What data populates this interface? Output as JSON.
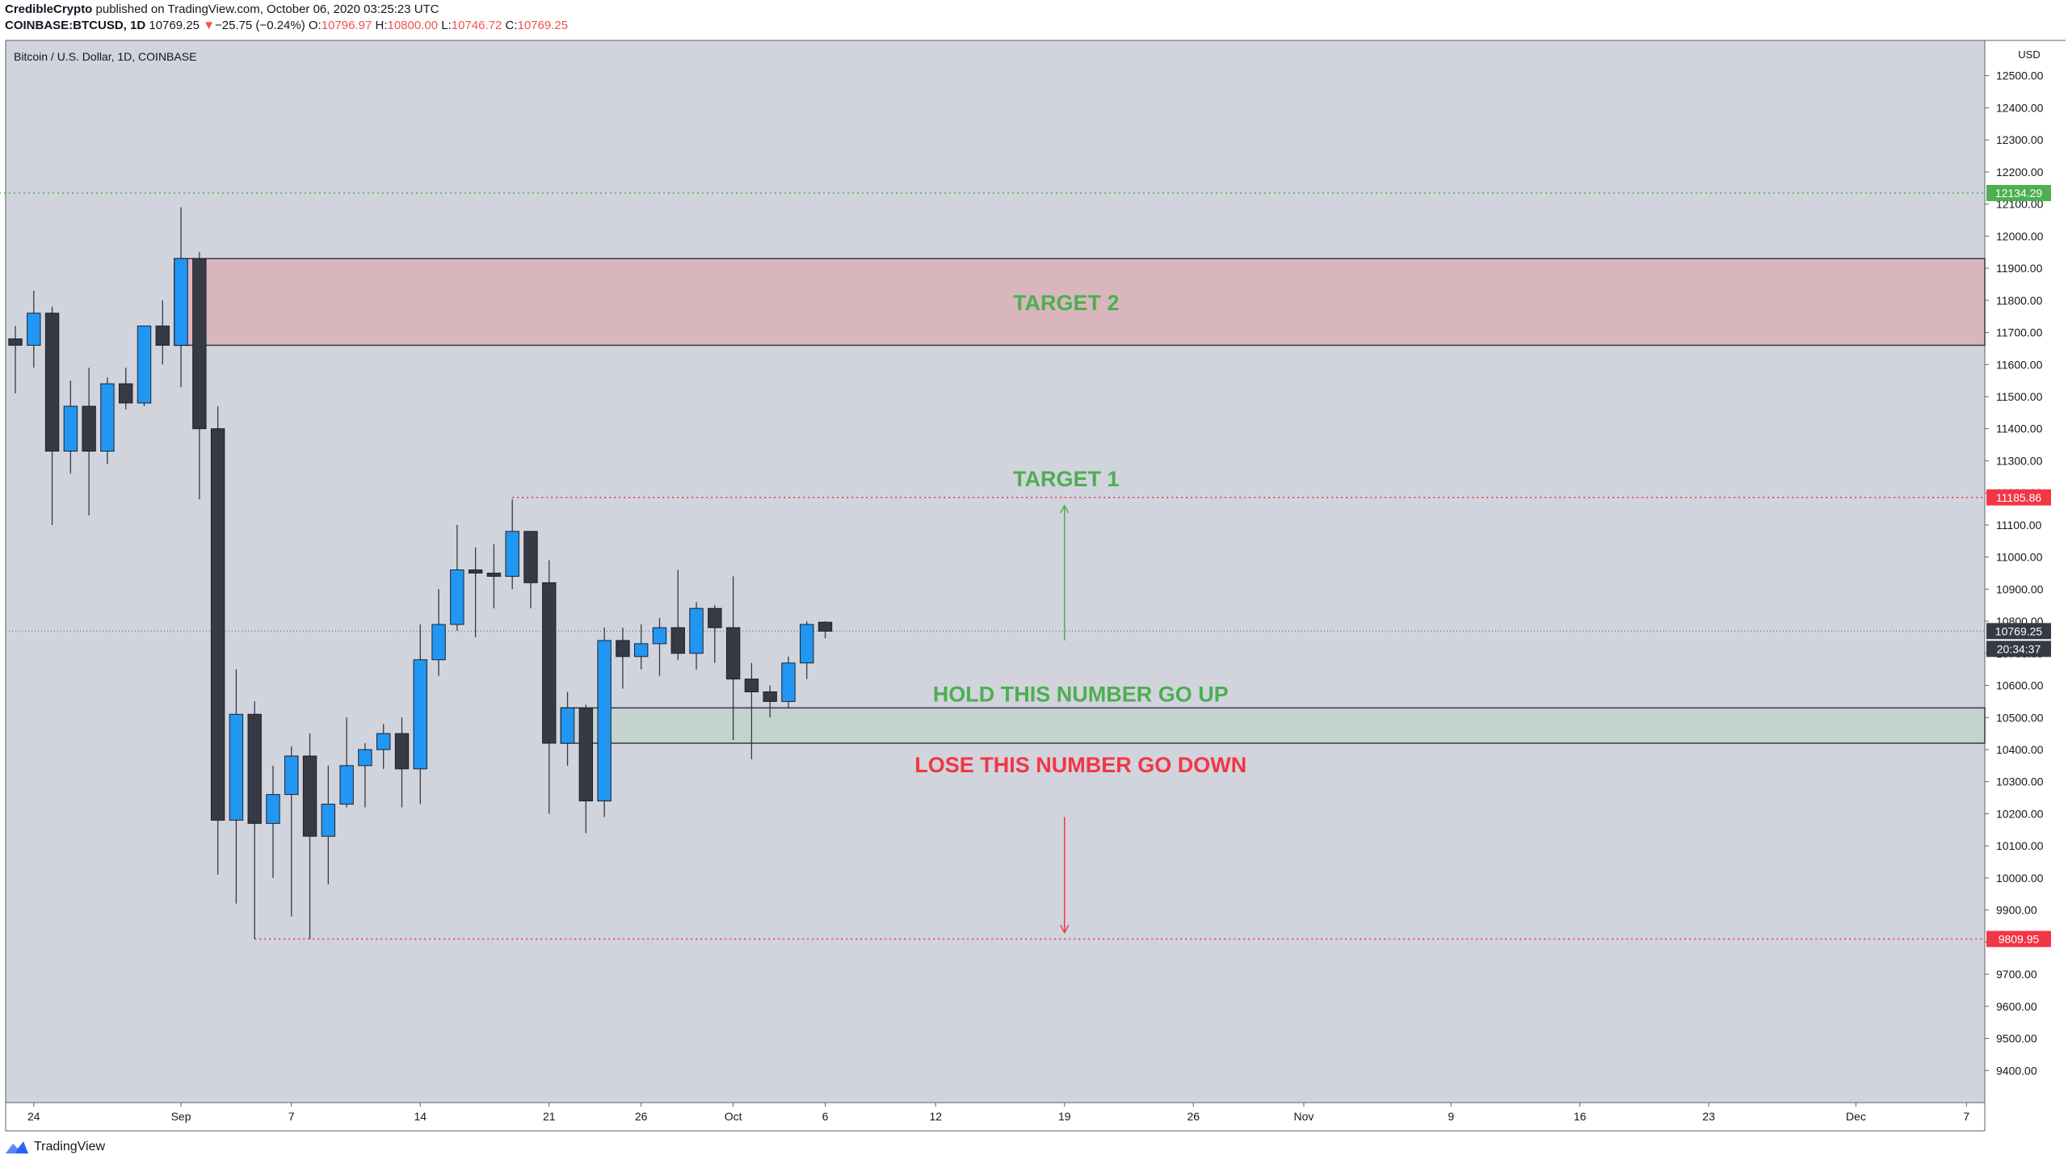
{
  "header": {
    "author": "CredibleCrypto",
    "published": "published on TradingView.com, October 06, 2020 03:25:23 UTC",
    "symbol": "COINBASE:BTCUSD, 1D",
    "last": "10769.25",
    "change_arrow": "▼",
    "change": "−25.75 (−0.24%)",
    "o_label": "O:",
    "o": "10796.97",
    "h_label": "H:",
    "h": "10800.00",
    "l_label": "L:",
    "l": "10746.72",
    "c_label": "C:",
    "c": "10769.25"
  },
  "footer": {
    "brand": "TradingView"
  },
  "colors": {
    "bg": "#d1d4dc",
    "bull": "#2196f3",
    "bear": "#363a45",
    "target2_zone": "#d9b2b9",
    "hold_zone": "#c3d3cc",
    "green_text": "#4caf50",
    "red_text": "#f23645"
  },
  "chart_data": {
    "type": "candlestick",
    "title": "Bitcoin / U.S. Dollar, 1D, COINBASE",
    "currency": "USD",
    "ylim": [
      9300,
      12610
    ],
    "yticks": [
      9400,
      9500,
      9600,
      9700,
      9800,
      9900,
      10000,
      10100,
      10200,
      10300,
      10400,
      10500,
      10600,
      10700,
      10800,
      10900,
      11000,
      11100,
      11200,
      11300,
      11400,
      11500,
      11600,
      11700,
      11800,
      11900,
      12000,
      12100,
      12200,
      12300,
      12400,
      12500
    ],
    "ytick_labels": [
      "9400.00",
      "9500.00",
      "9600.00",
      "9700.00",
      "9800.00",
      "9900.00",
      "10000.00",
      "10100.00",
      "10200.00",
      "10300.00",
      "10400.00",
      "10500.00",
      "10600.00",
      "10700.00",
      "10800.00",
      "10900.00",
      "11000.00",
      "11100.00",
      "11200.00",
      "11300.00",
      "11400.00",
      "11500.00",
      "11600.00",
      "11700.00",
      "11800.00",
      "11900.00",
      "12000.00",
      "12100.00",
      "12200.00",
      "12300.00",
      "12400.00",
      "12500.00"
    ],
    "xlim": [
      "2020-08-23",
      "2020-12-08"
    ],
    "xticks": [
      {
        "date": "2020-08-24",
        "label": "24"
      },
      {
        "date": "2020-09-01",
        "label": "Sep"
      },
      {
        "date": "2020-09-07",
        "label": "7"
      },
      {
        "date": "2020-09-14",
        "label": "14"
      },
      {
        "date": "2020-09-21",
        "label": "21"
      },
      {
        "date": "2020-09-26",
        "label": "26"
      },
      {
        "date": "2020-10-01",
        "label": "Oct"
      },
      {
        "date": "2020-10-06",
        "label": "6"
      },
      {
        "date": "2020-10-12",
        "label": "12"
      },
      {
        "date": "2020-10-19",
        "label": "19"
      },
      {
        "date": "2020-10-26",
        "label": "26"
      },
      {
        "date": "2020-11-01",
        "label": "Nov"
      },
      {
        "date": "2020-11-09",
        "label": "9"
      },
      {
        "date": "2020-11-16",
        "label": "16"
      },
      {
        "date": "2020-11-23",
        "label": "23"
      },
      {
        "date": "2020-12-01",
        "label": "Dec"
      },
      {
        "date": "2020-12-07",
        "label": "7"
      }
    ],
    "candles": [
      {
        "date": "2020-08-23",
        "o": 11680,
        "h": 11720,
        "l": 11510,
        "c": 11660
      },
      {
        "date": "2020-08-24",
        "o": 11660,
        "h": 11830,
        "l": 11590,
        "c": 11760
      },
      {
        "date": "2020-08-25",
        "o": 11760,
        "h": 11780,
        "l": 11100,
        "c": 11330
      },
      {
        "date": "2020-08-26",
        "o": 11330,
        "h": 11550,
        "l": 11260,
        "c": 11470
      },
      {
        "date": "2020-08-27",
        "o": 11470,
        "h": 11590,
        "l": 11130,
        "c": 11330
      },
      {
        "date": "2020-08-28",
        "o": 11330,
        "h": 11560,
        "l": 11290,
        "c": 11540
      },
      {
        "date": "2020-08-29",
        "o": 11540,
        "h": 11590,
        "l": 11460,
        "c": 11480
      },
      {
        "date": "2020-08-30",
        "o": 11480,
        "h": 11720,
        "l": 11470,
        "c": 11720
      },
      {
        "date": "2020-08-31",
        "o": 11720,
        "h": 11800,
        "l": 11600,
        "c": 11660
      },
      {
        "date": "2020-09-01",
        "o": 11660,
        "h": 12090,
        "l": 11530,
        "c": 11930
      },
      {
        "date": "2020-09-02",
        "o": 11930,
        "h": 11950,
        "l": 11180,
        "c": 11400
      },
      {
        "date": "2020-09-03",
        "o": 11400,
        "h": 11470,
        "l": 10010,
        "c": 10180
      },
      {
        "date": "2020-09-04",
        "o": 10180,
        "h": 10650,
        "l": 9920,
        "c": 10510
      },
      {
        "date": "2020-09-05",
        "o": 10510,
        "h": 10550,
        "l": 9810,
        "c": 10170
      },
      {
        "date": "2020-09-06",
        "o": 10170,
        "h": 10350,
        "l": 10000,
        "c": 10260
      },
      {
        "date": "2020-09-07",
        "o": 10260,
        "h": 10410,
        "l": 9880,
        "c": 10380
      },
      {
        "date": "2020-09-08",
        "o": 10380,
        "h": 10450,
        "l": 9810,
        "c": 10130
      },
      {
        "date": "2020-09-09",
        "o": 10130,
        "h": 10350,
        "l": 9980,
        "c": 10230
      },
      {
        "date": "2020-09-10",
        "o": 10230,
        "h": 10500,
        "l": 10220,
        "c": 10350
      },
      {
        "date": "2020-09-11",
        "o": 10350,
        "h": 10420,
        "l": 10220,
        "c": 10400
      },
      {
        "date": "2020-09-12",
        "o": 10400,
        "h": 10480,
        "l": 10340,
        "c": 10450
      },
      {
        "date": "2020-09-13",
        "o": 10450,
        "h": 10500,
        "l": 10220,
        "c": 10340
      },
      {
        "date": "2020-09-14",
        "o": 10340,
        "h": 10790,
        "l": 10230,
        "c": 10680
      },
      {
        "date": "2020-09-15",
        "o": 10680,
        "h": 10900,
        "l": 10630,
        "c": 10790
      },
      {
        "date": "2020-09-16",
        "o": 10790,
        "h": 11100,
        "l": 10770,
        "c": 10960
      },
      {
        "date": "2020-09-17",
        "o": 10960,
        "h": 11030,
        "l": 10750,
        "c": 10950
      },
      {
        "date": "2020-09-18",
        "o": 10950,
        "h": 11040,
        "l": 10840,
        "c": 10940
      },
      {
        "date": "2020-09-19",
        "o": 10940,
        "h": 11180,
        "l": 10900,
        "c": 11080
      },
      {
        "date": "2020-09-20",
        "o": 11080,
        "h": 11080,
        "l": 10840,
        "c": 10920
      },
      {
        "date": "2020-09-21",
        "o": 10920,
        "h": 10990,
        "l": 10200,
        "c": 10420
      },
      {
        "date": "2020-09-22",
        "o": 10420,
        "h": 10580,
        "l": 10350,
        "c": 10530
      },
      {
        "date": "2020-09-23",
        "o": 10530,
        "h": 10540,
        "l": 10140,
        "c": 10240
      },
      {
        "date": "2020-09-24",
        "o": 10240,
        "h": 10780,
        "l": 10190,
        "c": 10740
      },
      {
        "date": "2020-09-25",
        "o": 10740,
        "h": 10780,
        "l": 10590,
        "c": 10690
      },
      {
        "date": "2020-09-26",
        "o": 10690,
        "h": 10790,
        "l": 10650,
        "c": 10730
      },
      {
        "date": "2020-09-27",
        "o": 10730,
        "h": 10810,
        "l": 10630,
        "c": 10780
      },
      {
        "date": "2020-09-28",
        "o": 10780,
        "h": 10960,
        "l": 10680,
        "c": 10700
      },
      {
        "date": "2020-09-29",
        "o": 10700,
        "h": 10860,
        "l": 10650,
        "c": 10840
      },
      {
        "date": "2020-09-30",
        "o": 10840,
        "h": 10850,
        "l": 10670,
        "c": 10780
      },
      {
        "date": "2020-10-01",
        "o": 10780,
        "h": 10940,
        "l": 10430,
        "c": 10620
      },
      {
        "date": "2020-10-02",
        "o": 10620,
        "h": 10670,
        "l": 10370,
        "c": 10580
      },
      {
        "date": "2020-10-03",
        "o": 10580,
        "h": 10600,
        "l": 10500,
        "c": 10550
      },
      {
        "date": "2020-10-04",
        "o": 10550,
        "h": 10690,
        "l": 10530,
        "c": 10670
      },
      {
        "date": "2020-10-05",
        "o": 10670,
        "h": 10800,
        "l": 10620,
        "c": 10790
      },
      {
        "date": "2020-10-06",
        "o": 10797,
        "h": 10800,
        "l": 10747,
        "c": 10769
      }
    ],
    "zones": [
      {
        "from": 11660,
        "to": 11930,
        "start": "2020-09-01",
        "label": "TARGET 2"
      },
      {
        "from": 10420,
        "to": 10530,
        "start": "2020-09-22",
        "label": "HOLD THIS NUMBER GO UP"
      }
    ],
    "annotations": [
      "TARGET 1",
      "LOSE THIS NUMBER GO DOWN"
    ],
    "levels": [
      {
        "value": 12134.29,
        "label": "12134.29",
        "color": "#4caf50",
        "start": "2020-08-23"
      },
      {
        "value": 11185.86,
        "label": "11185.86",
        "color": "#f23645",
        "start": "2020-09-19"
      },
      {
        "value": 9809.95,
        "label": "9809.95",
        "color": "#f23645",
        "start": "2020-09-05"
      }
    ],
    "last_price": {
      "value": 10769.25,
      "label": "10769.25",
      "countdown": "20:34:37"
    }
  }
}
